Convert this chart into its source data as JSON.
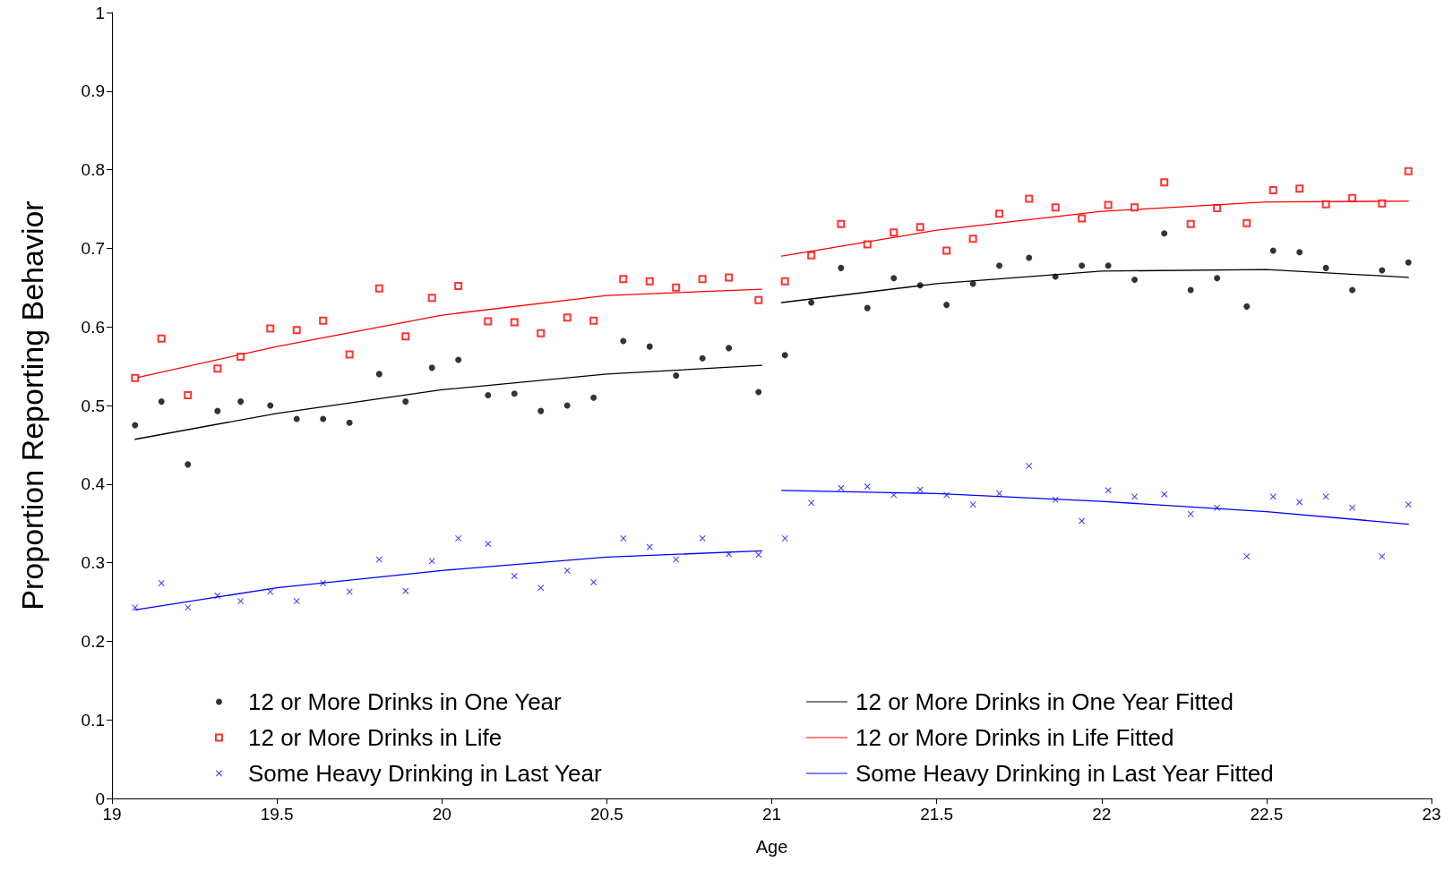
{
  "chart_data": {
    "type": "scatter",
    "xlabel": "Age",
    "ylabel": "Proportion Reporting Behavior",
    "xlim": [
      19,
      23
    ],
    "xticks": [
      19,
      19.5,
      20,
      20.5,
      21,
      21.5,
      22,
      22.5,
      23
    ],
    "ylim": [
      0,
      1
    ],
    "yticks": [
      0,
      0.1,
      0.2,
      0.3,
      0.4,
      0.5,
      0.6,
      0.7,
      0.8,
      0.9,
      1
    ],
    "grid": false,
    "legend": "bottom",
    "x": [
      19.07,
      19.15,
      19.23,
      19.32,
      19.39,
      19.48,
      19.56,
      19.64,
      19.72,
      19.81,
      19.89,
      19.97,
      20.05,
      20.14,
      20.22,
      20.3,
      20.38,
      20.46,
      20.55,
      20.63,
      20.71,
      20.79,
      20.87,
      20.96,
      21.04,
      21.12,
      21.21,
      21.29,
      21.37,
      21.45,
      21.53,
      21.61,
      21.69,
      21.78,
      21.86,
      21.94,
      22.02,
      22.1,
      22.19,
      22.27,
      22.35,
      22.44,
      22.52,
      22.6,
      22.68,
      22.76,
      22.85,
      22.93
    ],
    "series": [
      {
        "name": "12 or More Drinks in One Year",
        "marker": "circle",
        "color": "#000000",
        "values": [
          0.475,
          0.505,
          0.425,
          0.493,
          0.505,
          0.5,
          0.483,
          0.483,
          0.478,
          0.54,
          0.505,
          0.548,
          0.558,
          0.513,
          0.515,
          0.493,
          0.5,
          0.51,
          0.582,
          0.575,
          0.538,
          0.56,
          0.573,
          0.517,
          0.564,
          0.631,
          0.675,
          0.624,
          0.662,
          0.653,
          0.628,
          0.655,
          0.678,
          0.688,
          0.664,
          0.678,
          0.678,
          0.66,
          0.719,
          0.647,
          0.662,
          0.626,
          0.697,
          0.695,
          0.675,
          0.647,
          0.672,
          0.682
        ]
      },
      {
        "name": "12 or More Drinks in Life",
        "marker": "square",
        "color": "#ff0000",
        "values": [
          0.535,
          0.585,
          0.513,
          0.547,
          0.562,
          0.598,
          0.596,
          0.608,
          0.565,
          0.649,
          0.588,
          0.637,
          0.652,
          0.607,
          0.606,
          0.592,
          0.612,
          0.608,
          0.661,
          0.658,
          0.65,
          0.661,
          0.663,
          0.634,
          0.658,
          0.691,
          0.731,
          0.705,
          0.72,
          0.727,
          0.697,
          0.712,
          0.744,
          0.763,
          0.752,
          0.738,
          0.755,
          0.752,
          0.784,
          0.731,
          0.751,
          0.732,
          0.774,
          0.776,
          0.756,
          0.764,
          0.757,
          0.798
        ]
      },
      {
        "name": "Some Heavy Drinking in Last Year",
        "marker": "cross",
        "color": "#0000ff",
        "values": [
          0.243,
          0.274,
          0.243,
          0.258,
          0.251,
          0.263,
          0.251,
          0.274,
          0.263,
          0.304,
          0.264,
          0.302,
          0.331,
          0.324,
          0.283,
          0.268,
          0.29,
          0.275,
          0.331,
          0.32,
          0.304,
          0.331,
          0.311,
          0.31,
          0.331,
          0.376,
          0.395,
          0.397,
          0.386,
          0.393,
          0.386,
          0.374,
          0.388,
          0.423,
          0.38,
          0.353,
          0.392,
          0.384,
          0.387,
          0.362,
          0.37,
          0.308,
          0.384,
          0.377,
          0.384,
          0.37,
          0.308,
          0.374
        ]
      },
      {
        "name": "12 or More Drinks in One Year Fitted",
        "type": "line",
        "marker": "none",
        "line_style": "solid",
        "color": "#000000",
        "x": [
          19.07,
          19.5,
          20,
          20.5,
          20.97,
          21,
          21.03,
          21.5,
          22,
          22.5,
          22.93
        ],
        "values": [
          0.457,
          0.49,
          0.52,
          0.54,
          0.551,
          null,
          0.631,
          0.655,
          0.671,
          0.673,
          0.663
        ]
      },
      {
        "name": "12 or More Drinks in Life Fitted",
        "type": "line",
        "marker": "none",
        "line_style": "solid",
        "color": "#ff0000",
        "x": [
          19.07,
          19.5,
          20,
          20.5,
          20.97,
          21,
          21.03,
          21.5,
          22,
          22.5,
          22.93
        ],
        "values": [
          0.535,
          0.575,
          0.615,
          0.64,
          0.648,
          null,
          0.69,
          0.723,
          0.747,
          0.759,
          0.76
        ]
      },
      {
        "name": "Some Heavy Drinking in Last Year Fitted",
        "type": "line",
        "marker": "none",
        "line_style": "solid",
        "color": "#0000ff",
        "x": [
          19.07,
          19.5,
          20,
          20.5,
          20.97,
          21,
          21.03,
          21.5,
          22,
          22.5,
          22.93
        ],
        "values": [
          0.24,
          0.268,
          0.29,
          0.307,
          0.315,
          null,
          0.392,
          0.388,
          0.378,
          0.365,
          0.349
        ]
      }
    ]
  }
}
